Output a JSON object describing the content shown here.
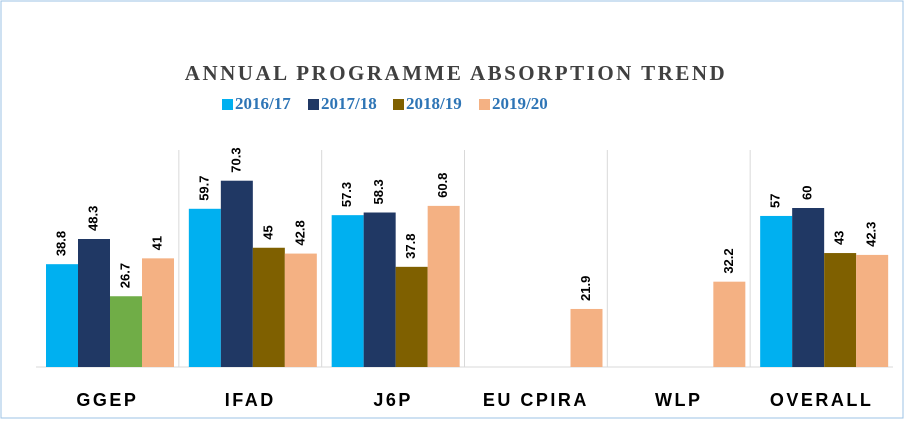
{
  "chart_data": {
    "type": "bar",
    "title": "ANNUAL PROGRAMME ABSORPTION TREND",
    "categories": [
      "GGEP",
      "IFAD",
      "J6P",
      "EU CPIRA",
      "WLP",
      "OVERALL"
    ],
    "series": [
      {
        "name": "2016/17",
        "color": "#00b0f0",
        "values": [
          38.8,
          59.7,
          57.3,
          null,
          null,
          57
        ]
      },
      {
        "name": "2017/18",
        "color": "#203864",
        "values": [
          48.3,
          70.3,
          58.3,
          null,
          null,
          60
        ]
      },
      {
        "name": "2018/19",
        "color": "#7f6000",
        "colors": [
          "#70ad47",
          "#7f6000",
          "#7f6000",
          "#7f6000",
          "#7f6000",
          "#7f6000"
        ],
        "values": [
          26.7,
          45,
          37.8,
          null,
          null,
          43
        ]
      },
      {
        "name": "2019/20",
        "color": "#f4b183",
        "values": [
          41,
          42.8,
          60.8,
          21.9,
          32.2,
          42.3
        ]
      }
    ],
    "ylim": [
      0,
      80
    ],
    "legend": "top",
    "data_labels": true
  }
}
